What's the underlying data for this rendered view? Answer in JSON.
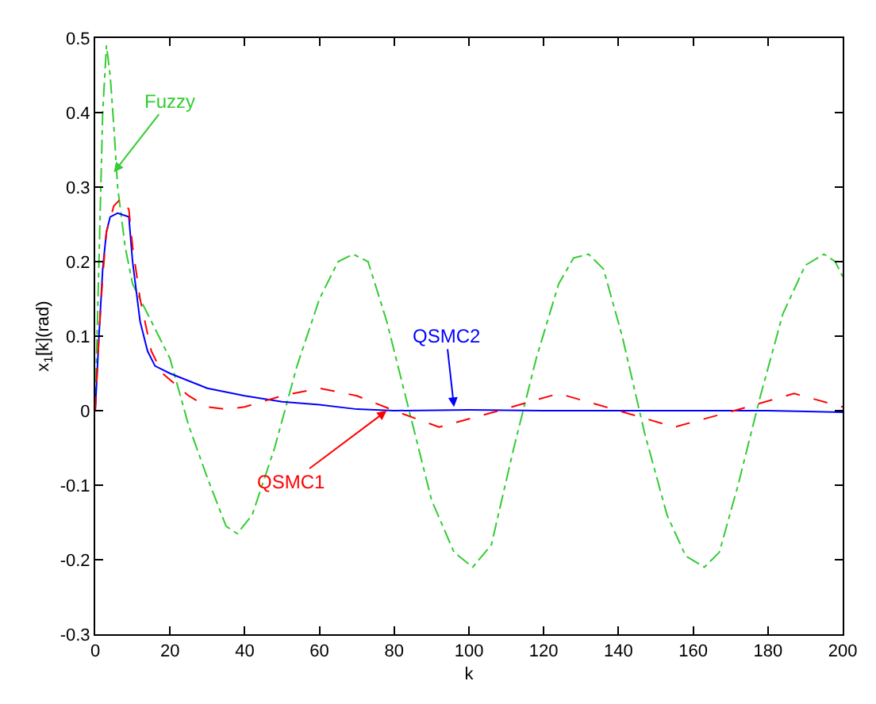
{
  "chart_data": {
    "type": "line",
    "xlabel": "k",
    "ylabel": "x$_{1}$[k](rad)",
    "xlim": [
      0,
      200
    ],
    "xticks": [
      0,
      20,
      40,
      60,
      80,
      100,
      120,
      140,
      160,
      180,
      200
    ],
    "ylim": [
      -0.3,
      0.5
    ],
    "yticks": [
      -0.3,
      -0.2,
      -0.1,
      0,
      0.1,
      0.2,
      0.3,
      0.4,
      0.5
    ],
    "marker": "none",
    "series": [
      {
        "color": "#33cc33",
        "line_style": "dashdot",
        "x": [
          0,
          1,
          2,
          3,
          4,
          5,
          6,
          8,
          10,
          15,
          20,
          25,
          30,
          35,
          38,
          42,
          48,
          54,
          60,
          65,
          69,
          73,
          78,
          84,
          90,
          96,
          101,
          106,
          112,
          118,
          124,
          128,
          132,
          136,
          141,
          147,
          153,
          158,
          163,
          167,
          172,
          178,
          184,
          190,
          195,
          198,
          200
        ],
        "values": [
          0,
          0.2,
          0.4,
          0.49,
          0.45,
          0.38,
          0.3,
          0.22,
          0.17,
          0.12,
          0.07,
          -0.02,
          -0.09,
          -0.155,
          -0.165,
          -0.14,
          -0.05,
          0.06,
          0.15,
          0.2,
          0.21,
          0.2,
          0.12,
          0.0,
          -0.12,
          -0.19,
          -0.21,
          -0.18,
          -0.05,
          0.07,
          0.17,
          0.205,
          0.21,
          0.19,
          0.1,
          -0.03,
          -0.14,
          -0.195,
          -0.21,
          -0.19,
          -0.1,
          0.02,
          0.13,
          0.195,
          0.21,
          0.2,
          0.18
        ]
      },
      {
        "color": "#0000ff",
        "line_style": "solid",
        "x": [
          0,
          1,
          2,
          3,
          4,
          6,
          9,
          10,
          12,
          14,
          16,
          20,
          30,
          40,
          50,
          60,
          70,
          80,
          100,
          120,
          140,
          160,
          180,
          200
        ],
        "values": [
          0,
          0.1,
          0.19,
          0.24,
          0.26,
          0.265,
          0.26,
          0.2,
          0.12,
          0.08,
          0.06,
          0.05,
          0.03,
          0.02,
          0.012,
          0.008,
          0.002,
          0,
          0.001,
          0,
          0,
          0,
          0,
          -0.002
        ]
      },
      {
        "color": "#ff0000",
        "line_style": "dashed",
        "x": [
          0,
          1,
          2,
          3,
          5,
          7,
          9,
          10,
          12,
          15,
          18,
          25,
          30,
          35,
          40,
          50,
          60,
          70,
          80,
          92,
          108,
          124,
          140,
          155,
          171,
          187,
          200
        ],
        "values": [
          0,
          0.1,
          0.18,
          0.24,
          0.275,
          0.285,
          0.27,
          0.22,
          0.15,
          0.08,
          0.05,
          0.02,
          0.005,
          0.002,
          0.005,
          0.02,
          0.03,
          0.02,
          0.0,
          -0.022,
          0.0,
          0.023,
          0.0,
          -0.022,
          0.0,
          0.023,
          0.005
        ]
      }
    ],
    "annotations": [
      {
        "text": "Fuzzy",
        "x": 5,
        "y": 0.32
      },
      {
        "text": "QSMC2",
        "x": 96,
        "y": 0.005
      },
      {
        "text": "QSMC1",
        "x": 78,
        "y": 0.0
      }
    ]
  }
}
